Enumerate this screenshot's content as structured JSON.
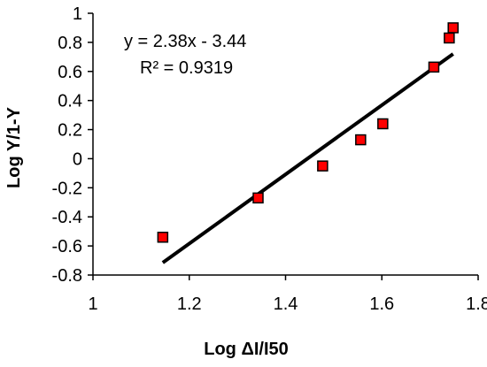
{
  "chart_data": {
    "type": "scatter",
    "title": "",
    "xlabel": "Log ΔI/I50",
    "ylabel": "Log Y/1-Y",
    "xlim": [
      1,
      1.8
    ],
    "ylim": [
      -0.8,
      1
    ],
    "xticks": [
      1,
      1.2,
      1.4,
      1.6,
      1.8
    ],
    "xtick_labels": [
      "1",
      "1.2",
      "1.4",
      "1.6",
      "1.8"
    ],
    "yticks": [
      -0.8,
      -0.6,
      -0.4,
      -0.2,
      0,
      0.2,
      0.4,
      0.6,
      0.8,
      1
    ],
    "ytick_labels": [
      "-0.8",
      "-0.6",
      "-0.4",
      "-0.2",
      "0",
      "0.2",
      "0.4",
      "0.6",
      "0.8",
      "1"
    ],
    "grid": false,
    "legend": false,
    "series": [
      {
        "points": [
          {
            "x": 1.145,
            "y": -0.54
          },
          {
            "x": 1.343,
            "y": -0.27
          },
          {
            "x": 1.477,
            "y": -0.05
          },
          {
            "x": 1.556,
            "y": 0.13
          },
          {
            "x": 1.602,
            "y": 0.24
          },
          {
            "x": 1.708,
            "y": 0.63
          },
          {
            "x": 1.74,
            "y": 0.83
          },
          {
            "x": 1.748,
            "y": 0.9
          }
        ],
        "marker": "square",
        "marker_fill": "#ff0000",
        "marker_edge": "#000000"
      }
    ],
    "trendline": {
      "type": "linear",
      "slope": 2.38,
      "intercept": -3.44,
      "x_range": [
        1.145,
        1.748
      ],
      "color": "#000000"
    },
    "annotations": {
      "equation": "y = 2.38x - 3.44",
      "r_squared": "R² = 0.9319"
    }
  }
}
